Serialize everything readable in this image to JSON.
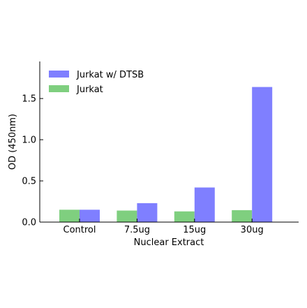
{
  "chart_data": {
    "type": "bar",
    "categories": [
      "Control",
      "7.5ug",
      "15ug",
      "30ug"
    ],
    "series": [
      {
        "name": "Jurkat",
        "color": "#7fcf7f",
        "values": [
          0.15,
          0.14,
          0.13,
          0.145
        ]
      },
      {
        "name": "Jurkat w/ DTSB",
        "color": "#7f7fff",
        "values": [
          0.15,
          0.23,
          0.42,
          1.64
        ]
      }
    ],
    "xlabel": "Nuclear Extract",
    "ylabel": "OD (450nm)",
    "ylim": [
      0,
      1.95
    ],
    "yticks": [
      0.0,
      0.5,
      1.0,
      1.5
    ],
    "ytick_labels": [
      "0.0",
      "0.5",
      "1.0",
      "1.5"
    ],
    "grid": false,
    "legend": {
      "position": "top-left",
      "order": [
        "Jurkat w/ DTSB",
        "Jurkat"
      ]
    }
  }
}
